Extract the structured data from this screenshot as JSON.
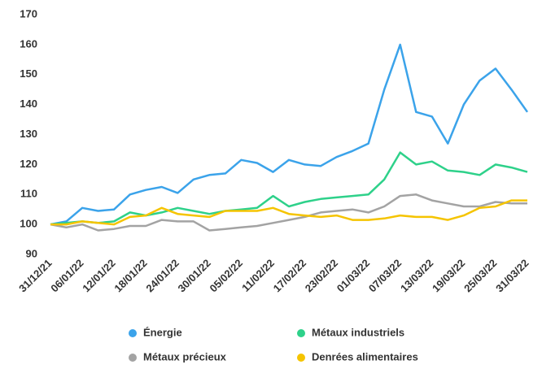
{
  "chart_data": {
    "type": "line",
    "categories": [
      "31/12/21",
      null,
      "06/01/22",
      null,
      "12/01/22",
      null,
      "18/01/22",
      null,
      "24/01/22",
      null,
      "30/01/22",
      null,
      "05/02/22",
      null,
      "11/02/22",
      null,
      "17/02/22",
      null,
      "23/02/22",
      null,
      "01/03/22",
      null,
      "07/03/22",
      null,
      "13/03/22",
      null,
      "19/03/22",
      null,
      "25/03/22",
      null,
      "31/03/22"
    ],
    "series": [
      {
        "name": "Énergie",
        "color": "#3ba3ea",
        "values": [
          100,
          101,
          105.5,
          104.5,
          105,
          110,
          111.5,
          112.5,
          110.5,
          115,
          116.5,
          117,
          121.5,
          120.5,
          117.5,
          121.5,
          120,
          119.5,
          122.5,
          124.5,
          127,
          145,
          160,
          137.5,
          136,
          127,
          140,
          148,
          152,
          145,
          137.5
        ]
      },
      {
        "name": "Métaux industriels",
        "color": "#2ed18a",
        "values": [
          100,
          100.5,
          101,
          100.5,
          101,
          104,
          103,
          104,
          105.5,
          104.5,
          103.5,
          104.5,
          105,
          105.5,
          109.5,
          106,
          107.5,
          108.5,
          109,
          109.5,
          110,
          115,
          124,
          120,
          121,
          118,
          117.5,
          116.5,
          120,
          119,
          117.5
        ]
      },
      {
        "name": "Métaux précieux",
        "color": "#a3a3a3",
        "values": [
          100,
          99,
          100,
          98,
          98.5,
          99.5,
          99.5,
          101.5,
          101,
          101,
          98,
          98.5,
          99,
          99.5,
          100.5,
          101.5,
          102.5,
          104,
          104.5,
          105,
          104,
          106,
          109.5,
          110,
          108,
          107,
          106,
          106,
          107.5,
          107,
          107
        ]
      },
      {
        "name": "Denrées alimentaires",
        "color": "#f5c400",
        "values": [
          100,
          100,
          101,
          100.5,
          100,
          102.5,
          103,
          105.5,
          103.5,
          103,
          102.5,
          104.5,
          104.5,
          104.5,
          105.5,
          103.5,
          103,
          102.5,
          103,
          101.5,
          101.5,
          102,
          103,
          102.5,
          102.5,
          101.5,
          103,
          105.5,
          106,
          108,
          108
        ]
      }
    ],
    "ylim": [
      90,
      170
    ],
    "yticks": [
      90,
      100,
      110,
      120,
      130,
      140,
      150,
      160,
      170
    ]
  }
}
